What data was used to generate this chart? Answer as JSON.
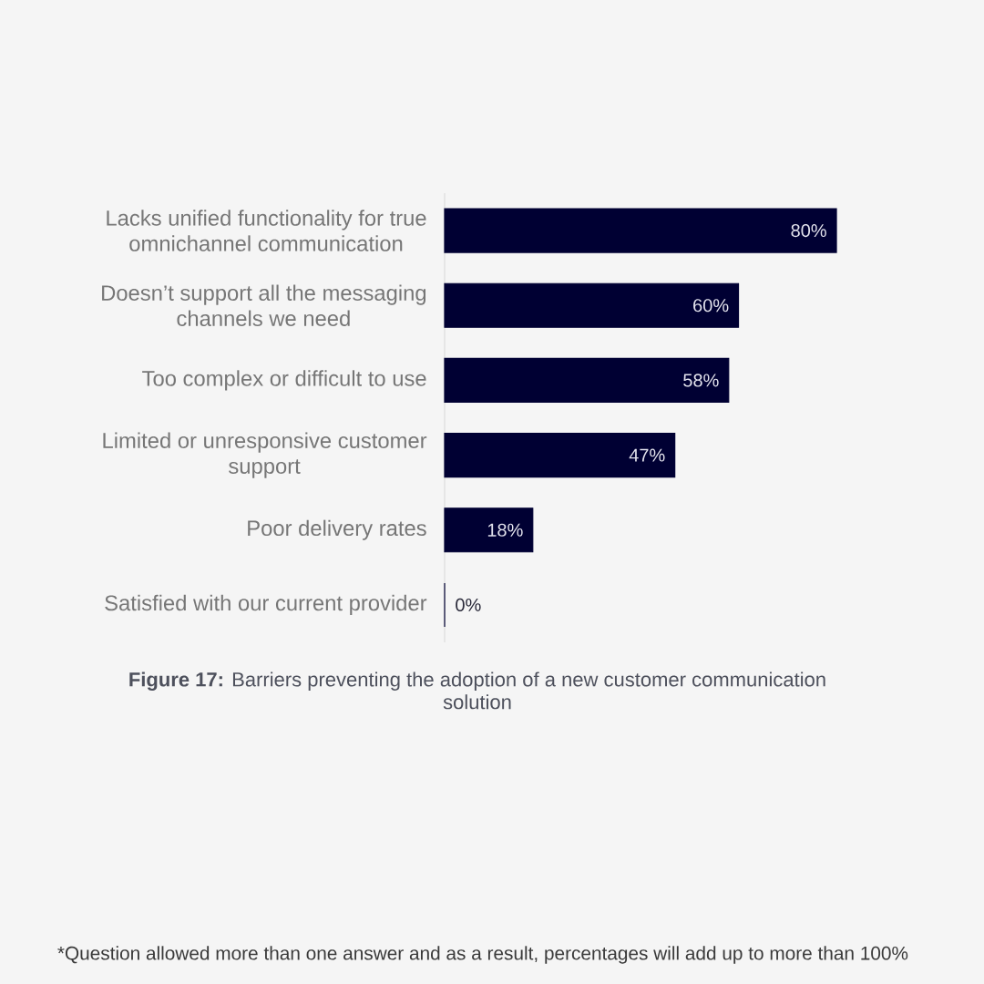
{
  "chart_data": {
    "type": "bar",
    "orientation": "horizontal",
    "title": "**Figure 17:** Barriers preventing the adoption of a new customer communication solution",
    "categories": [
      "Lacks unified functionality for true omnichannel communication",
      "Doesn’t support all the messaging channels we need",
      "Too complex or difficult to use",
      "Limited or unresponsive customer support",
      "Poor delivery rates",
      "Satisfied with our current provider"
    ],
    "values": [
      80,
      60,
      58,
      47,
      18,
      0
    ],
    "value_labels": [
      "80%",
      "60%",
      "58%",
      "47%",
      "18%",
      "0%"
    ],
    "color": "#000033",
    "tick_labels": "y",
    "annotations": [
      "*Question allowed more than one answer and as a result, percentages will add up to more than 100%"
    ]
  }
}
